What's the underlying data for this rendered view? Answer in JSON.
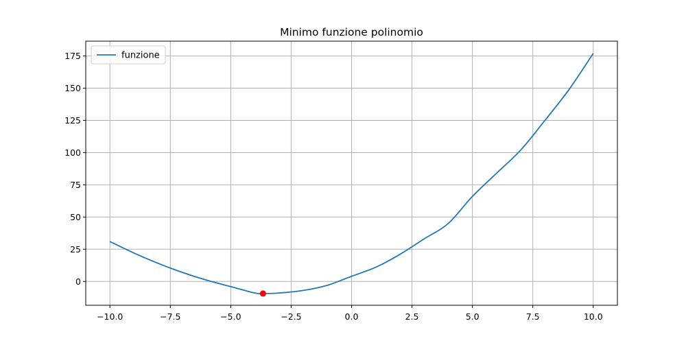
{
  "chart_data": {
    "type": "line",
    "title": "Minimo funzione polinomio",
    "xlabel": "",
    "ylabel": "",
    "xlim": [
      -11,
      11
    ],
    "ylim": [
      -18.5,
      186.5
    ],
    "xticks": [
      -10,
      -7.5,
      -5,
      -2.5,
      0,
      2.5,
      5,
      7.5,
      10
    ],
    "xtick_labels": [
      "−10.0",
      "−7.5",
      "−5.0",
      "−2.5",
      "0.0",
      "2.5",
      "5.0",
      "7.5",
      "10.0"
    ],
    "yticks": [
      0,
      25,
      50,
      75,
      100,
      125,
      150,
      175
    ],
    "ytick_labels": [
      "0",
      "25",
      "50",
      "75",
      "100",
      "125",
      "150",
      "175"
    ],
    "grid": true,
    "legend_position": "upper-left",
    "series": [
      {
        "name": "funzione",
        "color": "#1f77b4",
        "x": [
          -10,
          -9,
          -8,
          -7,
          -6,
          -5,
          -4,
          -3.666,
          -3,
          -2,
          -1,
          0,
          1,
          2,
          3,
          4,
          5,
          6,
          7,
          8,
          9,
          10
        ],
        "y": [
          31,
          22,
          14,
          7,
          1,
          -4,
          -9,
          -9.4,
          -9,
          -7,
          -3,
          4,
          11,
          21,
          33,
          45,
          66,
          84,
          102,
          125,
          149,
          177
        ]
      }
    ],
    "markers": [
      {
        "x": -3.666,
        "y": -9.4,
        "color": "#ff0000"
      }
    ]
  }
}
